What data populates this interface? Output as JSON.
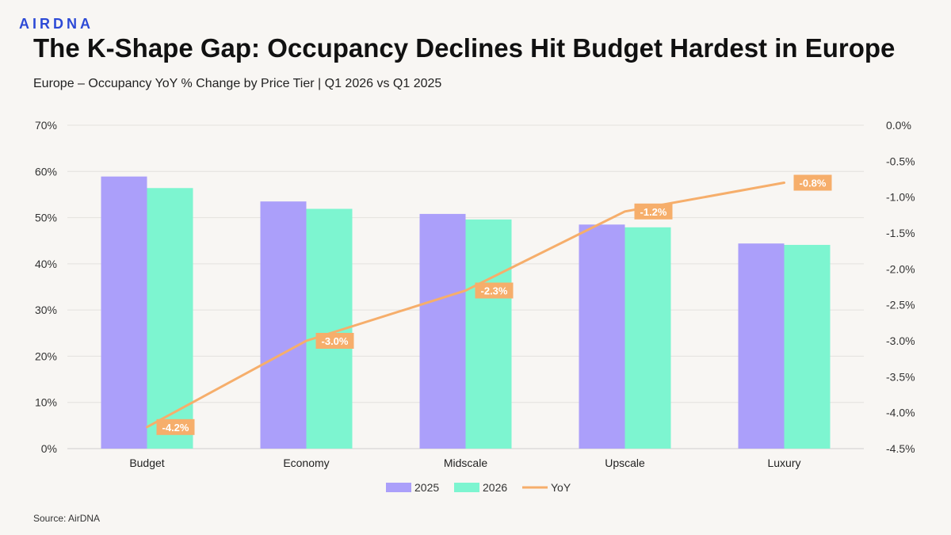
{
  "brand": {
    "logo_text": "AIRDNA"
  },
  "header": {
    "title": "The K-Shape Gap: Occupancy Declines Hit Budget Hardest in Europe",
    "subtitle": "Europe – Occupancy YoY % Change by Price Tier | Q1 2026 vs Q1 2025"
  },
  "footer": {
    "source": "Source: AirDNA"
  },
  "chart_data": {
    "type": "bar",
    "categories": [
      "Budget",
      "Economy",
      "Midscale",
      "Upscale",
      "Luxury"
    ],
    "series": [
      {
        "name": "2025",
        "type": "bar",
        "axis": "left",
        "color": "#ab9ffa",
        "values": [
          58.9,
          53.5,
          50.8,
          48.5,
          44.4
        ]
      },
      {
        "name": "2026",
        "type": "bar",
        "axis": "left",
        "color": "#7df5d0",
        "values": [
          56.4,
          51.9,
          49.6,
          47.9,
          44.1
        ]
      },
      {
        "name": "YoY",
        "type": "line",
        "axis": "right",
        "color": "#f6ae6b",
        "values": [
          -4.2,
          -3.0,
          -2.3,
          -1.2,
          -0.8
        ],
        "labels": [
          "-4.2%",
          "-3.0%",
          "-2.3%",
          "-1.2%",
          "-0.8%"
        ]
      }
    ],
    "y_left": {
      "min": 0,
      "max": 70,
      "step": 10,
      "ticks": [
        "0%",
        "10%",
        "20%",
        "30%",
        "40%",
        "50%",
        "60%",
        "70%"
      ]
    },
    "y_right": {
      "min": -4.5,
      "max": 0,
      "step": 0.5,
      "ticks": [
        "-4.5%",
        "-4.0%",
        "-3.5%",
        "-3.0%",
        "-2.5%",
        "-2.0%",
        "-1.5%",
        "-1.0%",
        "-0.5%",
        "0.0%"
      ]
    },
    "grid": true,
    "legend_position": "bottom"
  }
}
